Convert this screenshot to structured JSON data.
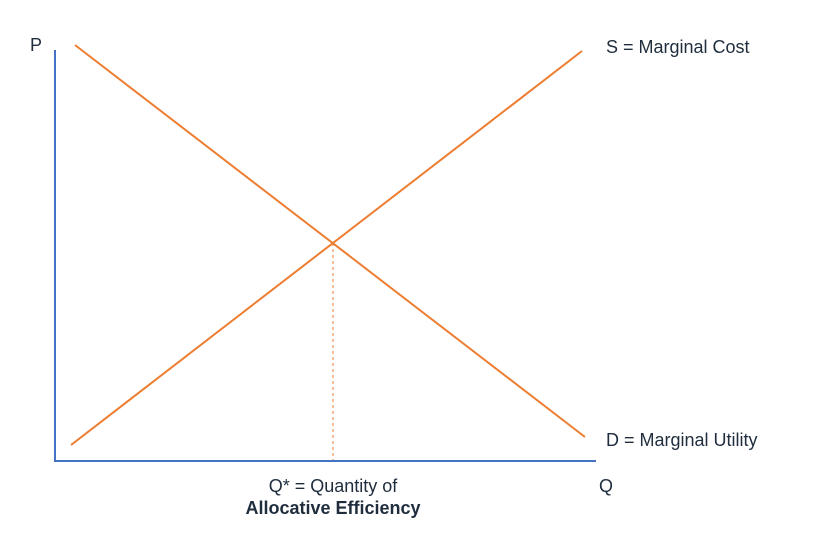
{
  "diagram": {
    "axes": {
      "y_label": "P",
      "x_label": "Q"
    },
    "curves": {
      "supply_label": "S = Marginal Cost",
      "demand_label": "D = Marginal Utility"
    },
    "equilibrium": {
      "label_line1": "Q* = Quantity of",
      "label_line2": "Allocative Efficiency"
    },
    "colors": {
      "axis": "#4472c4",
      "curves": "#ed7d31",
      "text": "#1f2d3d"
    }
  }
}
